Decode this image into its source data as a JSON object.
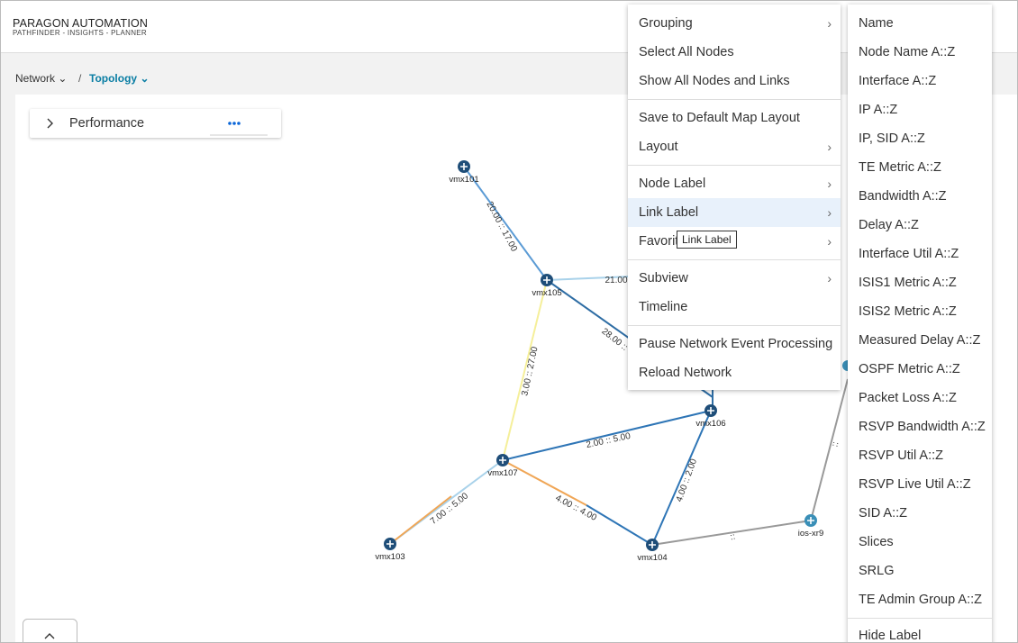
{
  "header": {
    "brand": "PARAGON AUTOMATION",
    "tagline": "PATHFINDER - INSIGHTS - PLANNER"
  },
  "breadcrumb": [
    "Network",
    "/",
    "Topology"
  ],
  "panel": {
    "title": "Performance"
  },
  "topology": {
    "nodes": [
      "vmx101",
      "vmx105",
      "vmx107",
      "vmx103",
      "vmx104",
      "vmx106",
      "ios-xr9"
    ],
    "link_labels": [
      "20.00 :: 17.00",
      "21.00",
      "28.00 ::",
      "3.00 :: 27.00",
      "2.00 :: 5.00",
      "7.00 :: 5.00",
      "4.00 :: 4.00",
      "4.00 :: 2.00",
      "::",
      "::"
    ]
  },
  "context_menu": {
    "groups": [
      [
        {
          "label": "Grouping",
          "submenu": true
        },
        {
          "label": "Select All Nodes",
          "submenu": false
        },
        {
          "label": "Show All Nodes and Links",
          "submenu": false
        }
      ],
      [
        {
          "label": "Save to Default Map Layout",
          "submenu": false
        },
        {
          "label": "Layout",
          "submenu": true
        }
      ],
      [
        {
          "label": "Node Label",
          "submenu": true
        },
        {
          "label": "Link Label",
          "submenu": true,
          "active": true
        },
        {
          "label": "Favorites",
          "submenu": true
        }
      ],
      [
        {
          "label": "Subview",
          "submenu": true
        },
        {
          "label": "Timeline",
          "submenu": false
        }
      ],
      [
        {
          "label": "Pause Network Event Processing",
          "submenu": false
        },
        {
          "label": "Reload Network",
          "submenu": false
        }
      ]
    ]
  },
  "tooltip": "Link Label",
  "submenu": {
    "items": [
      "Name",
      "Node Name A::Z",
      "Interface A::Z",
      "IP A::Z",
      "IP, SID A::Z",
      "TE Metric A::Z",
      "Bandwidth A::Z",
      "Delay A::Z",
      "Interface Util A::Z",
      "ISIS1 Metric A::Z",
      "ISIS2 Metric A::Z",
      "Measured Delay A::Z",
      "OSPF Metric A::Z",
      "Packet Loss A::Z",
      "RSVP Bandwidth A::Z",
      "RSVP Util A::Z",
      "RSVP Live Util A::Z",
      "SID A::Z",
      "Slices",
      "SRLG",
      "TE Admin Group A::Z"
    ],
    "footer": "Hide Label"
  }
}
